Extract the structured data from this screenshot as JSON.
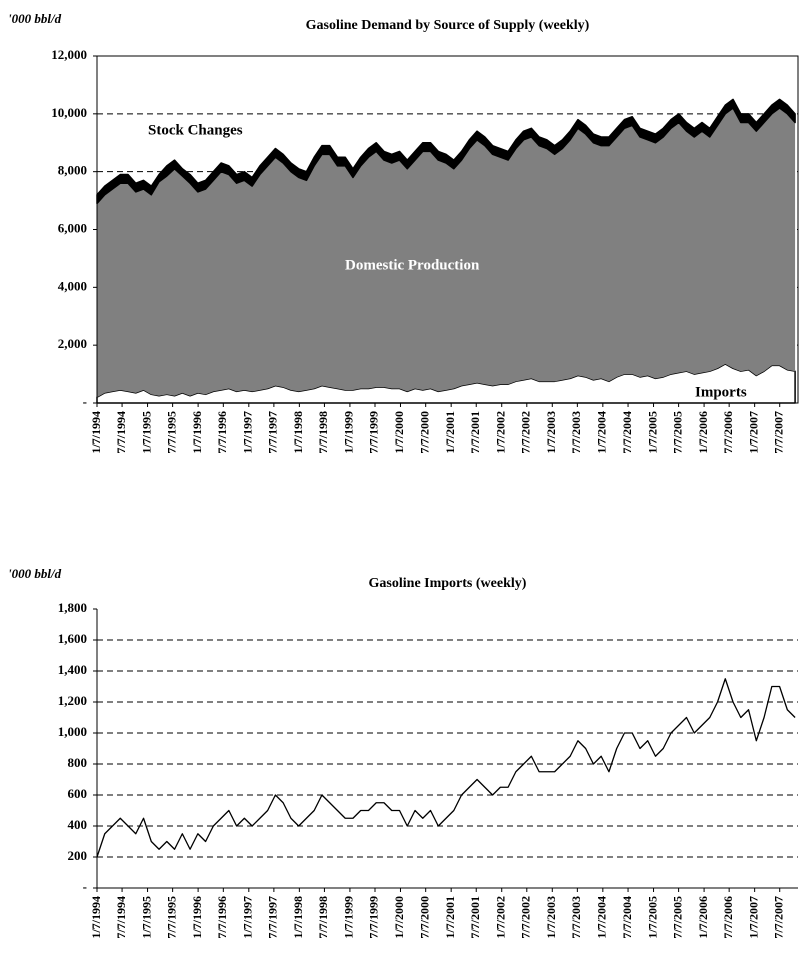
{
  "chart_data": [
    {
      "type": "area",
      "title": "Gasoline Demand by Source of Supply (weekly)",
      "y_label": "'000 bbl/d",
      "x": [
        "1/7/1994",
        "3/4/1994",
        "4/29/1994",
        "6/24/1994",
        "8/19/1994",
        "10/14/1994",
        "12/9/1994",
        "2/3/1995",
        "3/31/1995",
        "5/26/1995",
        "7/21/1995",
        "9/15/1995",
        "11/10/1995",
        "1/5/1996",
        "3/1/1996",
        "4/26/1996",
        "6/21/1996",
        "8/16/1996",
        "10/11/1996",
        "12/6/1996",
        "1/31/1997",
        "3/28/1997",
        "5/23/1997",
        "7/18/1997",
        "9/12/1997",
        "11/7/1997",
        "1/2/1998",
        "2/27/1998",
        "4/24/1998",
        "6/19/1998",
        "8/14/1998",
        "10/9/1998",
        "12/4/1998",
        "1/29/1999",
        "3/26/1999",
        "5/21/1999",
        "7/16/1999",
        "9/10/1999",
        "11/5/1999",
        "12/31/1999",
        "2/25/2000",
        "4/21/2000",
        "6/16/2000",
        "8/11/2000",
        "10/6/2000",
        "12/1/2000",
        "1/26/2001",
        "3/23/2001",
        "5/18/2001",
        "7/13/2001",
        "9/7/2001",
        "11/2/2001",
        "12/28/2001",
        "2/22/2002",
        "4/19/2002",
        "6/14/2002",
        "8/9/2002",
        "10/4/2002",
        "11/29/2002",
        "1/24/2003",
        "3/21/2003",
        "5/16/2003",
        "7/11/2003",
        "9/5/2003",
        "10/31/2003",
        "12/26/2003",
        "2/20/2004",
        "4/16/2004",
        "6/11/2004",
        "8/6/2004",
        "10/1/2004",
        "11/26/2004",
        "1/21/2005",
        "3/18/2005",
        "5/13/2005",
        "7/8/2005",
        "9/2/2005",
        "10/28/2005",
        "12/23/2005",
        "2/17/2006",
        "4/14/2006",
        "6/9/2006",
        "8/4/2006",
        "9/29/2006",
        "11/24/2006",
        "1/19/2007",
        "3/16/2007",
        "5/11/2007",
        "7/6/2007",
        "8/31/2007",
        "10/26/2007"
      ],
      "series": [
        {
          "name": "Imports",
          "color": "#ffffff",
          "values": [
            200,
            350,
            400,
            450,
            400,
            350,
            450,
            300,
            250,
            300,
            250,
            350,
            250,
            350,
            300,
            400,
            450,
            500,
            400,
            450,
            400,
            450,
            500,
            600,
            550,
            450,
            400,
            450,
            500,
            600,
            550,
            500,
            450,
            450,
            500,
            500,
            550,
            550,
            500,
            500,
            400,
            500,
            450,
            500,
            400,
            450,
            500,
            600,
            650,
            700,
            650,
            600,
            650,
            650,
            750,
            800,
            850,
            750,
            750,
            750,
            800,
            850,
            950,
            900,
            800,
            850,
            750,
            900,
            1000,
            1000,
            900,
            950,
            850,
            900,
            1000,
            1050,
            1100,
            1000,
            1050,
            1100,
            1200,
            1350,
            1200,
            1100,
            1150,
            950,
            1100,
            1300,
            1300,
            1150,
            1100
          ]
        },
        {
          "name": "Domestic Production",
          "color": "#808080",
          "values": [
            6700,
            6850,
            7000,
            7150,
            7200,
            6950,
            6950,
            6900,
            7400,
            7550,
            7850,
            7500,
            7350,
            6950,
            7100,
            7300,
            7550,
            7400,
            7200,
            7250,
            7100,
            7450,
            7700,
            7900,
            7750,
            7550,
            7400,
            7250,
            7700,
            8000,
            8050,
            7700,
            7750,
            7350,
            7700,
            8000,
            8150,
            7850,
            7800,
            7900,
            7700,
            7900,
            8250,
            8200,
            8000,
            7850,
            7600,
            7800,
            8150,
            8400,
            8250,
            8000,
            7850,
            7750,
            8050,
            8300,
            8350,
            8150,
            8050,
            7850,
            8000,
            8250,
            8550,
            8400,
            8200,
            8050,
            8150,
            8300,
            8500,
            8600,
            8300,
            8150,
            8150,
            8300,
            8500,
            8650,
            8300,
            8200,
            8350,
            8100,
            8400,
            8650,
            9000,
            8600,
            8550,
            8450,
            8600,
            8700,
            8900,
            8850,
            8600
          ]
        },
        {
          "name": "Stock Changes",
          "color": "#000000",
          "values": [
            300,
            300,
            300,
            300,
            300,
            300,
            300,
            300,
            250,
            350,
            300,
            250,
            300,
            300,
            300,
            300,
            300,
            300,
            300,
            300,
            300,
            300,
            300,
            300,
            300,
            300,
            300,
            300,
            300,
            300,
            300,
            300,
            300,
            300,
            300,
            300,
            300,
            300,
            300,
            300,
            300,
            300,
            300,
            300,
            300,
            300,
            300,
            300,
            300,
            300,
            300,
            300,
            300,
            300,
            300,
            300,
            300,
            300,
            300,
            300,
            300,
            300,
            300,
            300,
            300,
            300,
            300,
            300,
            300,
            300,
            300,
            300,
            300,
            300,
            300,
            300,
            300,
            300,
            300,
            300,
            300,
            300,
            300,
            300,
            300,
            300,
            300,
            300,
            300,
            300,
            300
          ]
        }
      ],
      "xlim": [
        "1/7/1994",
        "11/16/2007"
      ],
      "xticks": [
        "1/7/1994",
        "7/7/1994",
        "1/7/1995",
        "7/7/1995",
        "1/7/1996",
        "7/7/1996",
        "1/7/1997",
        "7/7/1997",
        "1/7/1998",
        "7/7/1998",
        "1/7/1999",
        "7/7/1999",
        "1/7/2000",
        "7/7/2000",
        "1/7/2001",
        "7/7/2001",
        "1/7/2002",
        "7/7/2002",
        "1/7/2003",
        "7/7/2003",
        "1/7/2004",
        "7/7/2004",
        "1/7/2005",
        "7/7/2005",
        "1/7/2006",
        "7/7/2006",
        "1/7/2007",
        "7/7/2007"
      ],
      "ylim": [
        0,
        12000
      ],
      "yticks": [
        {
          "value": 0,
          "label": "-"
        },
        {
          "value": 2000,
          "label": "2,000"
        },
        {
          "value": 4000,
          "label": "4,000"
        },
        {
          "value": 6000,
          "label": "6,000"
        },
        {
          "value": 8000,
          "label": "8,000"
        },
        {
          "value": 10000,
          "label": "10,000"
        },
        {
          "value": 12000,
          "label": "12,000"
        }
      ],
      "grid": true,
      "annotations": [
        "Stock Changes",
        "Domestic Production",
        "Imports"
      ]
    },
    {
      "type": "line",
      "title": "Gasoline Imports (weekly)",
      "y_label": "'000 bbl/d",
      "x": [
        "1/7/1994",
        "3/4/1994",
        "4/29/1994",
        "6/24/1994",
        "8/19/1994",
        "10/14/1994",
        "12/9/1994",
        "2/3/1995",
        "3/31/1995",
        "5/26/1995",
        "7/21/1995",
        "9/15/1995",
        "11/10/1995",
        "1/5/1996",
        "3/1/1996",
        "4/26/1996",
        "6/21/1996",
        "8/16/1996",
        "10/11/1996",
        "12/6/1996",
        "1/31/1997",
        "3/28/1997",
        "5/23/1997",
        "7/18/1997",
        "9/12/1997",
        "11/7/1997",
        "1/2/1998",
        "2/27/1998",
        "4/24/1998",
        "6/19/1998",
        "8/14/1998",
        "10/9/1998",
        "12/4/1998",
        "1/29/1999",
        "3/26/1999",
        "5/21/1999",
        "7/16/1999",
        "9/10/1999",
        "11/5/1999",
        "12/31/1999",
        "2/25/2000",
        "4/21/2000",
        "6/16/2000",
        "8/11/2000",
        "10/6/2000",
        "12/1/2000",
        "1/26/2001",
        "3/23/2001",
        "5/18/2001",
        "7/13/2001",
        "9/7/2001",
        "11/2/2001",
        "12/28/2001",
        "2/22/2002",
        "4/19/2002",
        "6/14/2002",
        "8/9/2002",
        "10/4/2002",
        "11/29/2002",
        "1/24/2003",
        "3/21/2003",
        "5/16/2003",
        "7/11/2003",
        "9/5/2003",
        "10/31/2003",
        "12/26/2003",
        "2/20/2004",
        "4/16/2004",
        "6/11/2004",
        "8/6/2004",
        "10/1/2004",
        "11/26/2004",
        "1/21/2005",
        "3/18/2005",
        "5/13/2005",
        "7/8/2005",
        "9/2/2005",
        "10/28/2005",
        "12/23/2005",
        "2/17/2006",
        "4/14/2006",
        "6/9/2006",
        "8/4/2006",
        "9/29/2006",
        "11/24/2006",
        "1/19/2007",
        "3/16/2007",
        "5/11/2007",
        "7/6/2007",
        "8/31/2007",
        "10/26/2007"
      ],
      "series": [
        {
          "name": "Imports",
          "color": "#000000",
          "values": [
            200,
            350,
            400,
            450,
            400,
            350,
            450,
            300,
            250,
            300,
            250,
            350,
            250,
            350,
            300,
            400,
            450,
            500,
            400,
            450,
            400,
            450,
            500,
            600,
            550,
            450,
            400,
            450,
            500,
            600,
            550,
            500,
            450,
            450,
            500,
            500,
            550,
            550,
            500,
            500,
            400,
            500,
            450,
            500,
            400,
            450,
            500,
            600,
            650,
            700,
            650,
            600,
            650,
            650,
            750,
            800,
            850,
            750,
            750,
            750,
            800,
            850,
            950,
            900,
            800,
            850,
            750,
            900,
            1000,
            1000,
            900,
            950,
            850,
            900,
            1000,
            1050,
            1100,
            1000,
            1050,
            1100,
            1200,
            1350,
            1200,
            1100,
            1150,
            950,
            1100,
            1300,
            1300,
            1150,
            1100
          ]
        }
      ],
      "xlim": [
        "1/7/1994",
        "11/16/2007"
      ],
      "xticks": [
        "1/7/1994",
        "7/7/1994",
        "1/7/1995",
        "7/7/1995",
        "1/7/1996",
        "7/7/1996",
        "1/7/1997",
        "7/7/1997",
        "1/7/1998",
        "7/7/1998",
        "1/7/1999",
        "7/7/1999",
        "1/7/2000",
        "7/7/2000",
        "1/7/2001",
        "7/7/2001",
        "1/7/2002",
        "7/7/2002",
        "1/7/2003",
        "7/7/2003",
        "1/7/2004",
        "7/7/2004",
        "1/7/2005",
        "7/7/2005",
        "1/7/2006",
        "7/7/2006",
        "1/7/2007",
        "7/7/2007"
      ],
      "ylim": [
        0,
        1800
      ],
      "yticks": [
        {
          "value": 0,
          "label": "-"
        },
        200,
        400,
        600,
        800,
        {
          "value": 1000,
          "label": "1,000"
        },
        {
          "value": 1200,
          "label": "1,200"
        },
        {
          "value": 1400,
          "label": "1,400"
        },
        {
          "value": 1600,
          "label": "1,600"
        },
        {
          "value": 1800,
          "label": "1,800"
        }
      ],
      "grid": true
    }
  ]
}
